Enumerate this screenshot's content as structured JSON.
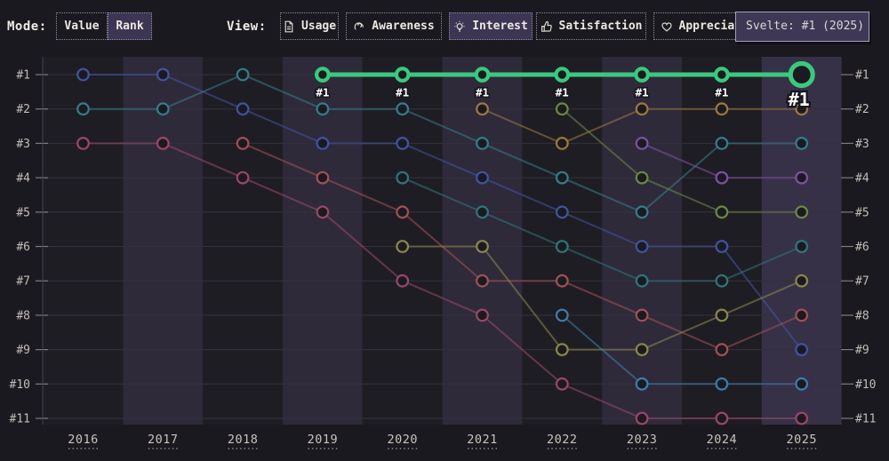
{
  "toolbar": {
    "mode_label": "Mode:",
    "mode_options": [
      {
        "label": "Value",
        "selected": false
      },
      {
        "label": "Rank",
        "selected": true
      }
    ],
    "view_label": "View:",
    "view_options": [
      {
        "label": "Usage",
        "icon": "document-icon",
        "selected": false
      },
      {
        "label": "Awareness",
        "icon": "ear-icon",
        "selected": false
      },
      {
        "label": "Interest",
        "icon": "lightbulb-icon",
        "selected": true
      },
      {
        "label": "Satisfaction",
        "icon": "thumbs-up-icon",
        "selected": false
      },
      {
        "label": "Appreciation",
        "icon": "heart-icon",
        "selected": false
      }
    ]
  },
  "tooltip": {
    "text": "Svelte: #1 (2025)"
  },
  "chart_data": {
    "type": "line",
    "subtype": "bump-rank",
    "x_labels": [
      "2016",
      "2017",
      "2018",
      "2019",
      "2020",
      "2021",
      "2022",
      "2023",
      "2024",
      "2025"
    ],
    "rank_axis_labels": [
      "#1",
      "#2",
      "#3",
      "#4",
      "#5",
      "#6",
      "#7",
      "#8",
      "#9",
      "#10",
      "#11"
    ],
    "axis_sides": [
      "left",
      "right"
    ],
    "grid": true,
    "legend": "none",
    "highlight_point_label": "#1",
    "highlight_color": "#3ac97e",
    "series": [
      {
        "id": "svelte",
        "name": "Svelte",
        "color": "#3ac97e",
        "highlighted": true,
        "ranks": [
          null,
          null,
          null,
          1,
          1,
          1,
          1,
          1,
          1,
          1
        ]
      },
      {
        "id": "blue",
        "color": "#4455a6",
        "highlighted": false,
        "ranks": [
          1,
          1,
          2,
          3,
          3,
          4,
          5,
          6,
          6,
          9
        ]
      },
      {
        "id": "teal",
        "color": "#35828f",
        "highlighted": false,
        "ranks": [
          2,
          2,
          1,
          2,
          2,
          3,
          4,
          5,
          3,
          3
        ]
      },
      {
        "id": "rose",
        "color": "#9e4a6d",
        "highlighted": false,
        "ranks": [
          3,
          3,
          4,
          5,
          7,
          8,
          10,
          11,
          11,
          11
        ]
      },
      {
        "id": "red",
        "color": "#a5535a",
        "highlighted": false,
        "ranks": [
          null,
          null,
          3,
          4,
          5,
          7,
          7,
          8,
          9,
          8
        ]
      },
      {
        "id": "dark-teal",
        "color": "#2f7a80",
        "highlighted": false,
        "ranks": [
          null,
          null,
          null,
          null,
          4,
          5,
          6,
          7,
          7,
          6
        ]
      },
      {
        "id": "olive",
        "color": "#8f8c4b",
        "highlighted": false,
        "ranks": [
          null,
          null,
          null,
          null,
          6,
          6,
          9,
          9,
          8,
          7
        ]
      },
      {
        "id": "tan",
        "color": "#9f7d42",
        "highlighted": false,
        "ranks": [
          null,
          null,
          null,
          null,
          null,
          2,
          3,
          2,
          2,
          2
        ]
      },
      {
        "id": "olive-green",
        "color": "#6f8d46",
        "highlighted": false,
        "ranks": [
          null,
          null,
          null,
          null,
          null,
          null,
          2,
          4,
          5,
          5
        ]
      },
      {
        "id": "steel-blue",
        "color": "#4181b1",
        "highlighted": false,
        "ranks": [
          null,
          null,
          null,
          null,
          null,
          null,
          8,
          10,
          10,
          10
        ]
      },
      {
        "id": "purple",
        "color": "#7f55a8",
        "highlighted": false,
        "ranks": [
          null,
          null,
          null,
          null,
          null,
          null,
          null,
          3,
          4,
          4
        ]
      }
    ]
  }
}
